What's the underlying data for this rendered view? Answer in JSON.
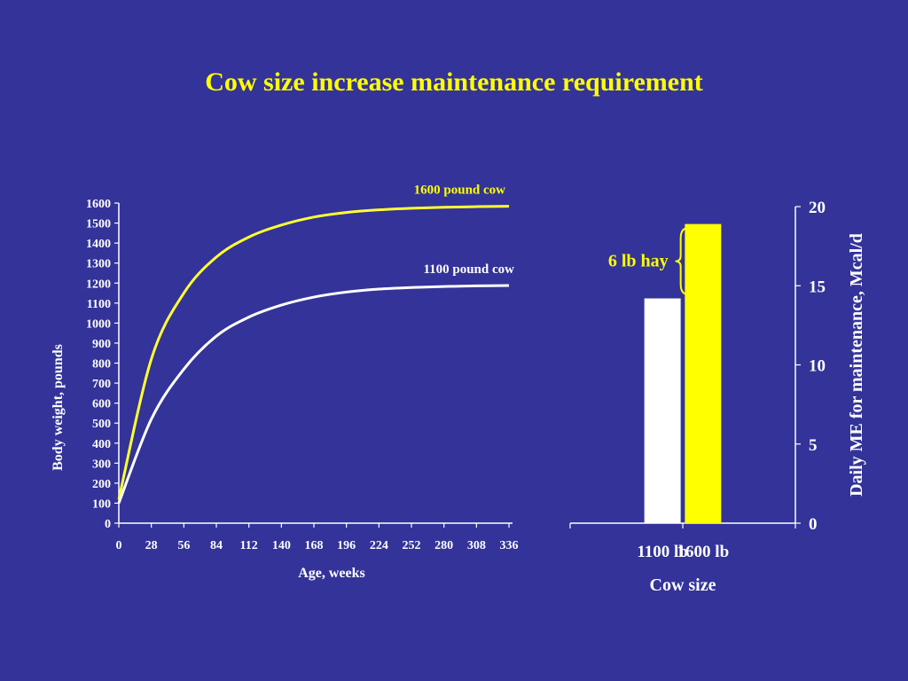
{
  "slide": {
    "title": "Cow size increase maintenance requirement"
  },
  "colors": {
    "background": "#333399",
    "title": "#FFFF00",
    "yellow_series": "#FFFF33",
    "white_series": "#FFFFFF"
  },
  "chart_data": [
    {
      "type": "line",
      "title": "",
      "xlabel": "Age, weeks",
      "ylabel": "Body weight, pounds",
      "xlim": [
        0,
        336
      ],
      "ylim": [
        0,
        1600
      ],
      "x_ticks": [
        0,
        28,
        56,
        84,
        112,
        140,
        168,
        196,
        224,
        252,
        280,
        308,
        336
      ],
      "y_ticks": [
        0,
        100,
        200,
        300,
        400,
        500,
        600,
        700,
        800,
        900,
        1000,
        1100,
        1200,
        1300,
        1400,
        1500,
        1600
      ],
      "grid": false,
      "series": [
        {
          "name": "1600 pound cow",
          "color": "#FFFF33",
          "x": [
            0,
            28,
            56,
            84,
            112,
            140,
            168,
            196,
            224,
            252,
            280,
            308,
            336
          ],
          "y": [
            120,
            820,
            1150,
            1330,
            1430,
            1490,
            1530,
            1553,
            1566,
            1574,
            1579,
            1582,
            1584
          ]
        },
        {
          "name": "1100 pound cow",
          "color": "#FFFFFF",
          "x": [
            0,
            28,
            56,
            84,
            112,
            140,
            168,
            196,
            224,
            252,
            280,
            308,
            336
          ],
          "y": [
            100,
            520,
            770,
            935,
            1030,
            1090,
            1130,
            1155,
            1170,
            1178,
            1183,
            1186,
            1188
          ]
        }
      ]
    },
    {
      "type": "bar",
      "title": "",
      "xlabel": "Cow size",
      "ylabel": "Daily ME for maintenance, Mcal/d",
      "ylim": [
        0,
        20
      ],
      "y_ticks": [
        0,
        5,
        10,
        15,
        20
      ],
      "grid": false,
      "y_axis_side": "right",
      "categories": [
        "1100 lb",
        "1600 lb"
      ],
      "values": [
        14.2,
        18.9
      ],
      "colors": [
        "#FFFFFF",
        "#FFFF00"
      ],
      "annotation": "6 lb hay"
    }
  ]
}
